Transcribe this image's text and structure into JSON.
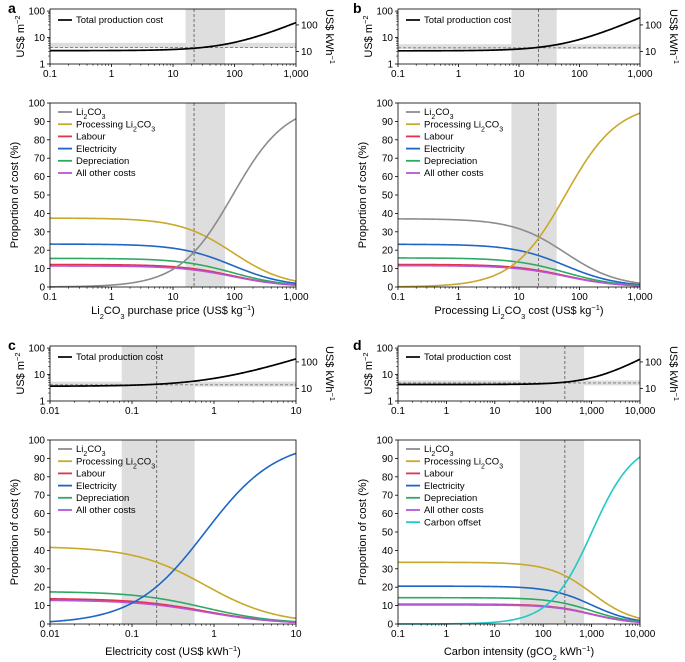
{
  "colors": {
    "li2co3": "#8c8c8c",
    "processing": "#c9a82a",
    "labour": "#e0334f",
    "electricity": "#1f66c4",
    "depreciation": "#2fa866",
    "other": "#b456d6",
    "carbon_offset": "#22c8c8",
    "total": "#000000",
    "band": "#dedede"
  },
  "chart_data": [
    {
      "panel": "a",
      "type": "line",
      "x_scale": "log",
      "xlim": [
        0.1,
        1000
      ],
      "xticks": [
        0.1,
        1,
        10,
        100,
        1000
      ],
      "xtick_labels": [
        "0.1",
        "1",
        "10",
        "100",
        "1,000"
      ],
      "xlabel_parts": [
        "Li",
        "2",
        "CO",
        "3",
        " purchase price (US$ kg",
        "−1",
        ")"
      ],
      "shaded_range": [
        16,
        70
      ],
      "reference_x": 22,
      "top": {
        "ylabel": "US$ m",
        "ylabel_sup": "−2",
        "right_label": "US$ kWh",
        "right_sup": "−1",
        "ylim": [
          1,
          120
        ],
        "yticks": [
          1,
          10,
          100
        ],
        "ytick_labels": [
          "1",
          "10",
          "100"
        ],
        "right_ticks": [
          3,
          30
        ],
        "right_tick_labels": [
          "10",
          "100"
        ],
        "band_range": [
          4.1,
          6.3
        ],
        "band_ref": 4.2,
        "legend": "Total production cost",
        "total": {
          "fixed": 3.2,
          "k": 0.0336
        }
      },
      "bottom": {
        "ylabel": "Proportion of cost (%)",
        "ylim": [
          0,
          100
        ],
        "yticks": [
          0,
          10,
          20,
          30,
          40,
          50,
          60,
          70,
          80,
          90,
          100
        ],
        "ytick_labels": [
          "0",
          "10",
          "20",
          "30",
          "40",
          "50",
          "60",
          "70",
          "80",
          "90",
          "100"
        ],
        "legend_labels": [
          "Li2CO3",
          "Processing Li2CO3",
          "Labour",
          "Electricity",
          "Depreciation",
          "All other costs"
        ],
        "variable": "li2co3",
        "variable_scale": 0.0336,
        "fixed": {
          "processing": 1.18,
          "labour": 0.385,
          "electricity": 0.735,
          "depreciation": 0.49,
          "other": 0.36
        }
      }
    },
    {
      "panel": "b",
      "type": "line",
      "x_scale": "log",
      "xlim": [
        0.1,
        1000
      ],
      "xticks": [
        0.1,
        1,
        10,
        100,
        1000
      ],
      "xtick_labels": [
        "0.1",
        "1",
        "10",
        "100",
        "1,000"
      ],
      "xlabel_parts": [
        "Processing Li",
        "2",
        "CO",
        "3",
        " cost (US$ kg",
        "−1",
        ")"
      ],
      "shaded_range": [
        7.5,
        42
      ],
      "reference_x": 21,
      "top": {
        "ylabel": "US$ m",
        "ylabel_sup": "−2",
        "right_label": "US$ kWh",
        "right_sup": "−1",
        "ylim": [
          1,
          120
        ],
        "yticks": [
          1,
          10,
          100
        ],
        "ytick_labels": [
          "1",
          "10",
          "100"
        ],
        "right_ticks": [
          3,
          30
        ],
        "right_tick_labels": [
          "10",
          "100"
        ],
        "band_range": [
          3.7,
          5.6
        ],
        "band_ref": 4.1,
        "legend": "Total production cost",
        "total": {
          "fixed": 3.15,
          "k": 0.053
        }
      },
      "bottom": {
        "ylabel": "Proportion of cost (%)",
        "ylim": [
          0,
          100
        ],
        "yticks": [
          0,
          10,
          20,
          30,
          40,
          50,
          60,
          70,
          80,
          90,
          100
        ],
        "ytick_labels": [
          "0",
          "10",
          "20",
          "30",
          "40",
          "50",
          "60",
          "70",
          "80",
          "90",
          "100"
        ],
        "legend_labels": [
          "Li2CO3",
          "Processing Li2CO3",
          "Labour",
          "Electricity",
          "Depreciation",
          "All other costs"
        ],
        "variable": "processing",
        "variable_scale": 0.053,
        "fixed": {
          "li2co3": 1.15,
          "labour": 0.38,
          "electricity": 0.72,
          "depreciation": 0.49,
          "other": 0.36
        }
      }
    },
    {
      "panel": "c",
      "type": "line",
      "x_scale": "log",
      "xlim": [
        0.01,
        10
      ],
      "xticks": [
        0.01,
        0.1,
        1,
        10
      ],
      "xtick_labels": [
        "0.01",
        "0.1",
        "1",
        "10"
      ],
      "xlabel_parts": [
        "Electricity cost (US$ kWh",
        "−1",
        ")"
      ],
      "shaded_range": [
        0.075,
        0.58
      ],
      "reference_x": 0.2,
      "top": {
        "ylabel": "US$ m",
        "ylabel_sup": "−2",
        "right_label": "US$ kWh",
        "right_sup": "−1",
        "ylim": [
          1,
          120
        ],
        "yticks": [
          1,
          10,
          100
        ],
        "ytick_labels": [
          "1",
          "10",
          "100"
        ],
        "right_ticks": [
          3,
          30
        ],
        "right_tick_labels": [
          "10",
          "100"
        ],
        "band_range": [
          3.5,
          5.4
        ],
        "band_ref": 4.1,
        "legend": "Total production cost",
        "total": {
          "fixed": 3.6,
          "k": 3.55
        }
      },
      "bottom": {
        "ylabel": "Proportion of cost (%)",
        "ylim": [
          0,
          100
        ],
        "yticks": [
          0,
          10,
          20,
          30,
          40,
          50,
          60,
          70,
          80,
          90,
          100
        ],
        "ytick_labels": [
          "0",
          "10",
          "20",
          "30",
          "40",
          "50",
          "60",
          "70",
          "80",
          "90",
          "100"
        ],
        "legend_labels": [
          "Li2CO3",
          "Processing Li2CO3",
          "Labour",
          "Electricity",
          "Depreciation",
          "All other costs"
        ],
        "variable": "electricity",
        "variable_scale": 3.55,
        "fixed": {
          "processing": 1.17,
          "li2co3": 0.37,
          "labour": 0.385,
          "depreciation": 0.49,
          "other": 0.36
        }
      }
    },
    {
      "panel": "d",
      "type": "line",
      "x_scale": "log",
      "xlim": [
        0.1,
        10000
      ],
      "xticks": [
        0.1,
        1,
        10,
        100,
        1000,
        10000
      ],
      "xtick_labels": [
        "0.1",
        "1",
        "10",
        "100",
        "1,000",
        "10,000"
      ],
      "xlabel_parts": [
        "Carbon intensity (gCO",
        "2",
        " kWh",
        "−1",
        ")"
      ],
      "shaded_range": [
        33,
        700
      ],
      "reference_x": 280,
      "top": {
        "ylabel": "US$ m",
        "ylabel_sup": "−2",
        "right_label": "US$ kWh",
        "right_sup": "−1",
        "ylim": [
          1,
          120
        ],
        "yticks": [
          1,
          10,
          100
        ],
        "ytick_labels": [
          "1",
          "10",
          "100"
        ],
        "right_ticks": [
          3,
          30
        ],
        "right_tick_labels": [
          "10",
          "100"
        ],
        "band_range": [
          3.9,
          6.0
        ],
        "band_ref": 4.8,
        "legend": "Total production cost",
        "total": {
          "fixed": 4.2,
          "k": 0.00338
        }
      },
      "bottom": {
        "ylabel": "Proportion of cost (%)",
        "ylim": [
          0,
          100
        ],
        "yticks": [
          0,
          10,
          20,
          30,
          40,
          50,
          60,
          70,
          80,
          90,
          100
        ],
        "ytick_labels": [
          "0",
          "10",
          "20",
          "30",
          "40",
          "50",
          "60",
          "70",
          "80",
          "90",
          "100"
        ],
        "legend_labels": [
          "Li2CO3",
          "Processing Li2CO3",
          "Labour",
          "Electricity",
          "Depreciation",
          "All other costs",
          "Carbon offset"
        ],
        "variable": "carbon_offset",
        "variable_scale": 0.00338,
        "fixed": {
          "processing": 1.15,
          "li2co3": 0.355,
          "labour": 0.37,
          "electricity": 0.705,
          "depreciation": 0.49,
          "other": 0.36
        }
      }
    }
  ]
}
